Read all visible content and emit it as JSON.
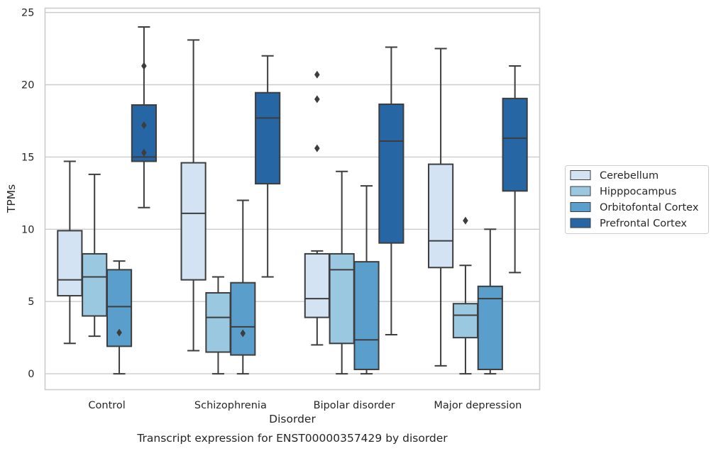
{
  "chart_data": {
    "type": "box",
    "title": "",
    "caption": "Transcript expression for ENST00000357429 by disorder",
    "xlabel": "Disorder",
    "ylabel": "TPMs",
    "ylim": [
      -1.1,
      25.3
    ],
    "yticks": [
      0,
      5,
      10,
      15,
      20,
      25
    ],
    "grid": true,
    "legend_position": "right",
    "categories": [
      "Control",
      "Schizophrenia",
      "Bipolar disorder",
      "Major depression"
    ],
    "series": [
      {
        "name": "Cerebellum",
        "color": "#d3e3f3",
        "boxes": [
          {
            "whislo": 2.1,
            "q1": 5.4,
            "med": 6.5,
            "q3": 9.9,
            "whishi": 14.7,
            "fliers": []
          },
          {
            "whislo": 1.6,
            "q1": 6.5,
            "med": 11.1,
            "q3": 14.6,
            "whishi": 23.1,
            "fliers": []
          },
          {
            "whislo": 2.0,
            "q1": 3.9,
            "med": 5.2,
            "q3": 8.3,
            "whishi": 8.5,
            "fliers": [
              15.6,
              19.0,
              20.7
            ]
          },
          {
            "whislo": 0.55,
            "q1": 7.35,
            "med": 9.2,
            "q3": 14.5,
            "whishi": 22.5,
            "fliers": []
          }
        ]
      },
      {
        "name": "Hipppocampus",
        "color": "#9ac8e0",
        "boxes": [
          {
            "whislo": 2.6,
            "q1": 4.0,
            "med": 6.7,
            "q3": 8.3,
            "whishi": 13.8,
            "fliers": []
          },
          {
            "whislo": 0.0,
            "q1": 1.5,
            "med": 3.9,
            "q3": 5.6,
            "whishi": 6.7,
            "fliers": []
          },
          {
            "whislo": 0.0,
            "q1": 2.1,
            "med": 7.2,
            "q3": 8.3,
            "whishi": 14.0,
            "fliers": []
          },
          {
            "whislo": 0.0,
            "q1": 2.5,
            "med": 4.05,
            "q3": 4.85,
            "whishi": 7.5,
            "fliers": [
              10.6
            ]
          }
        ]
      },
      {
        "name": "Orbitofontal Cortex",
        "color": "#5a9fcc",
        "boxes": [
          {
            "whislo": 0.0,
            "q1": 1.9,
            "med": 4.65,
            "q3": 7.2,
            "whishi": 7.8,
            "fliers": [
              2.85
            ]
          },
          {
            "whislo": 0.0,
            "q1": 1.3,
            "med": 3.25,
            "q3": 6.3,
            "whishi": 12.0,
            "fliers": [
              2.8
            ]
          },
          {
            "whislo": 0.0,
            "q1": 0.3,
            "med": 2.35,
            "q3": 7.75,
            "whishi": 13.0,
            "fliers": []
          },
          {
            "whislo": 0.0,
            "q1": 0.3,
            "med": 5.2,
            "q3": 6.05,
            "whishi": 10.0,
            "fliers": []
          }
        ]
      },
      {
        "name": "Prefrontal Cortex",
        "color": "#2666a5",
        "boxes": [
          {
            "whislo": 11.5,
            "q1": 14.7,
            "med": 15.0,
            "q3": 18.6,
            "whishi": 24.0,
            "fliers": [
              15.3,
              17.2,
              21.3
            ]
          },
          {
            "whislo": 6.7,
            "q1": 13.15,
            "med": 17.7,
            "q3": 19.45,
            "whishi": 22.0,
            "fliers": []
          },
          {
            "whislo": 2.7,
            "q1": 9.05,
            "med": 16.1,
            "q3": 18.65,
            "whishi": 22.6,
            "fliers": []
          },
          {
            "whislo": 7.0,
            "q1": 12.65,
            "med": 16.3,
            "q3": 19.05,
            "whishi": 21.3,
            "fliers": []
          }
        ]
      }
    ]
  }
}
